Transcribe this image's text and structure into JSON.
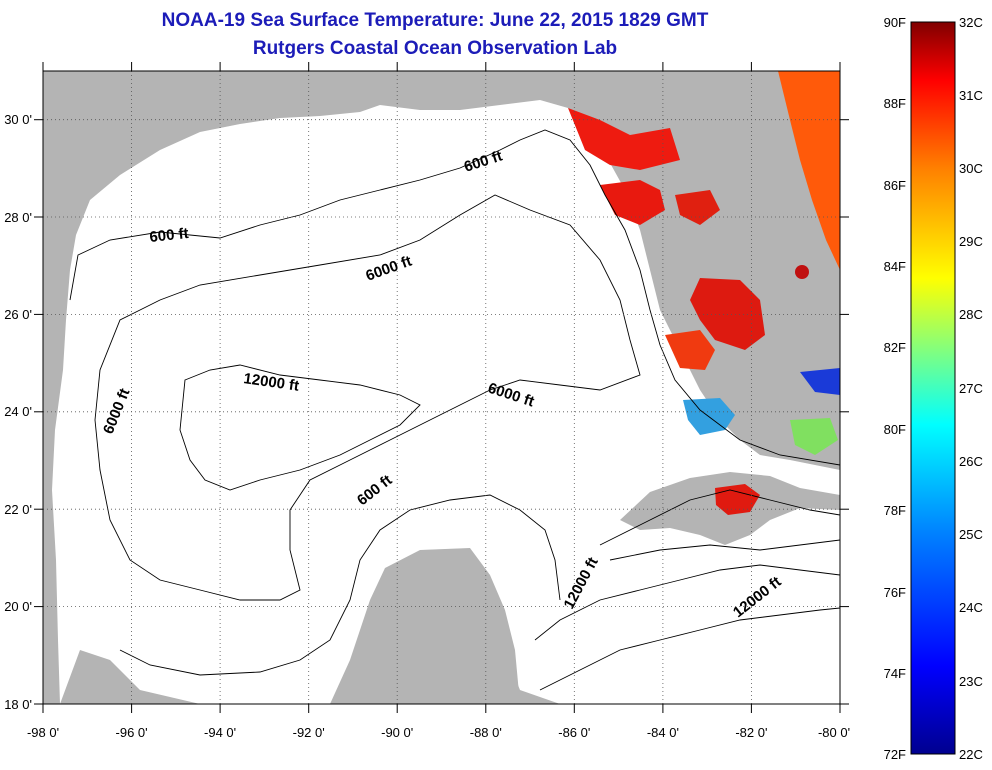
{
  "title": "NOAA-19 Sea Surface Temperature:  June 22, 2015 1829 GMT",
  "subtitle": "Rutgers Coastal Ocean Observation Lab",
  "map": {
    "lon_range": [
      -98,
      -80
    ],
    "lat_range": [
      18,
      31
    ],
    "x_ticks": [
      "-98 0'",
      "-96 0'",
      "-94 0'",
      "-92 0'",
      "-90 0'",
      "-88 0'",
      "-86 0'",
      "-84 0'",
      "-82 0'",
      "-80 0'"
    ],
    "y_ticks": [
      "18 0'",
      "20 0'",
      "22 0'",
      "24 0'",
      "26 0'",
      "28 0'",
      "30 0'"
    ],
    "grid": "dotted",
    "land_color": "#b4b4b4",
    "ocean_color": "#ffffff",
    "contour_labels": [
      "600 ft",
      "6000 ft",
      "12000 ft",
      "6000 ft",
      "600 ft",
      "600 ft",
      "6000 ft",
      "12000 ft",
      "12000 ft"
    ]
  },
  "colorbar": {
    "min_c": 22,
    "max_c": 32,
    "fahrenheit_labels": [
      "90F",
      "88F",
      "86F",
      "84F",
      "82F",
      "80F",
      "78F",
      "76F",
      "74F",
      "72F"
    ],
    "celsius_labels": [
      "32C",
      "31C",
      "30C",
      "29C",
      "28C",
      "27C",
      "26C",
      "25C",
      "24C",
      "23C",
      "22C"
    ],
    "colors": [
      "#00008f",
      "#0000ff",
      "#0080ff",
      "#00ffff",
      "#80ff80",
      "#ffff00",
      "#ff8000",
      "#ff0000",
      "#800000"
    ]
  }
}
